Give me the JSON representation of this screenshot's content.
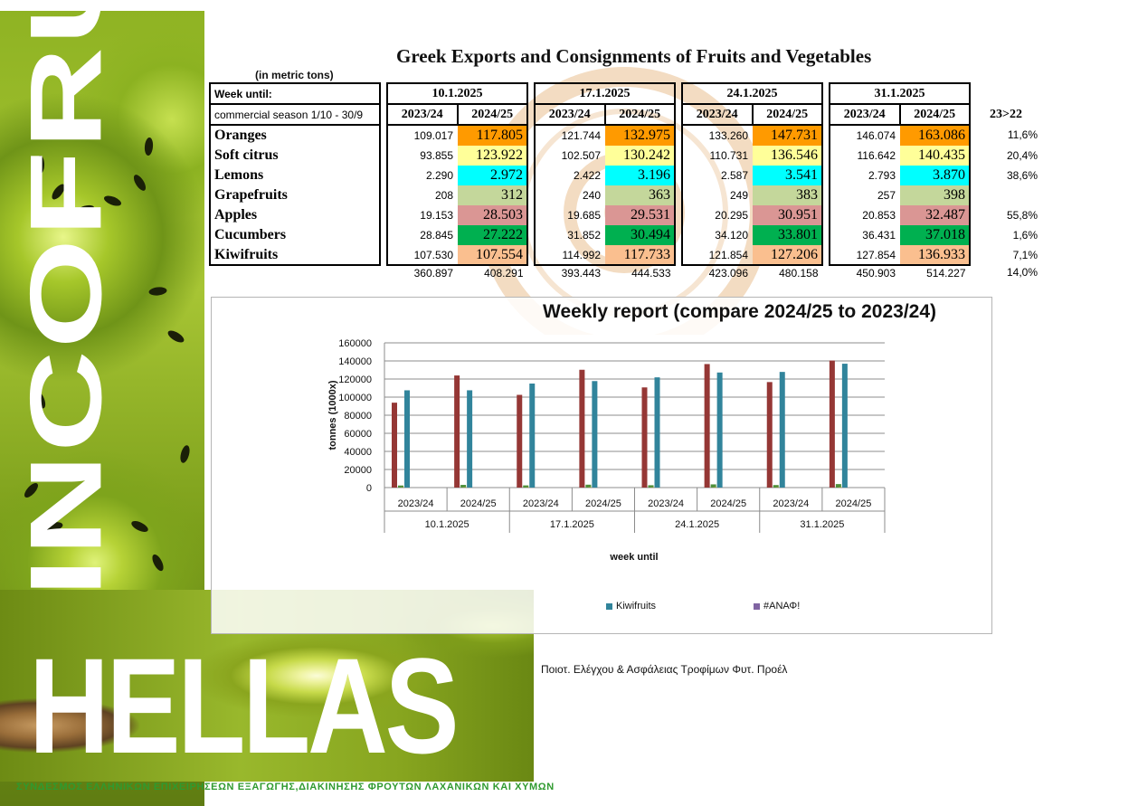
{
  "branding": {
    "vertical_text": "INCOFRUIT",
    "horizontal_text": "HELLAS",
    "association": "ΣΥΝΔΕΣΜΟΣ ΕΛΛΗΝΙΚΩΝ ΕΠΙΧΕΙΡΗΣΕΩΝ ΕΞΑΓΩΓΗΣ,ΔΙΑΚΙΝΗΣΗΣ ΦΡΟΥΤΩΝ ΛΑΧΑΝΙΚΩΝ ΚΑΙ ΧΥΜΩΝ"
  },
  "report": {
    "title": "Greek Exports and Consignments of Fruits and Vegetables",
    "units": "(in metric tons)",
    "week_label": "Week until:",
    "season_label": "commercial season 1/10 - 30/9",
    "change_header": "23>22",
    "weeks": [
      "10.1.2025",
      "17.1.2025",
      "24.1.2025",
      "31.1.2025"
    ],
    "seasons": [
      "2023/24",
      "2024/25"
    ],
    "products": [
      {
        "name": "Oranges",
        "color": "#ff9a00",
        "values": [
          "109.017",
          "117.805",
          "121.744",
          "132.975",
          "133.260",
          "147.731",
          "146.074",
          "163.086"
        ],
        "change": "11,6%"
      },
      {
        "name": "Soft citrus",
        "color": "#ffff99",
        "values": [
          "93.855",
          "123.922",
          "102.507",
          "130.242",
          "110.731",
          "136.546",
          "116.642",
          "140.435"
        ],
        "change": "20,4%"
      },
      {
        "name": "Lemons",
        "color": "#00ffff",
        "values": [
          "2.290",
          "2.972",
          "2.422",
          "3.196",
          "2.587",
          "3.541",
          "2.793",
          "3.870"
        ],
        "change": "38,6%"
      },
      {
        "name": "Grapefruits",
        "color": "#c4d79b",
        "values": [
          "208",
          "312",
          "240",
          "363",
          "249",
          "383",
          "257",
          "398"
        ],
        "change": ""
      },
      {
        "name": "Apples",
        "color": "#da9694",
        "values": [
          "19.153",
          "28.503",
          "19.685",
          "29.531",
          "20.295",
          "30.951",
          "20.853",
          "32.487"
        ],
        "change": "55,8%"
      },
      {
        "name": "Cucumbers",
        "color": "#00b050",
        "values": [
          "28.845",
          "27.222",
          "31.852",
          "30.494",
          "34.120",
          "33.801",
          "36.431",
          "37.018"
        ],
        "change": "1,6%"
      },
      {
        "name": "Kiwifruits",
        "color": "#fabf8f",
        "values": [
          "107.530",
          "107.554",
          "114.992",
          "117.733",
          "121.854",
          "127.206",
          "127.854",
          "136.933"
        ],
        "change": "7,1%"
      }
    ],
    "totals": [
      "360.897",
      "408.291",
      "393.443",
      "444.533",
      "423.096",
      "480.158",
      "450.903",
      "514.227"
    ],
    "totals_change": "14,0%"
  },
  "chart_data": {
    "type": "bar",
    "title": "Weekly report (compare 2024/25 to 2023/24)",
    "ylabel": "tonnes (1000x)",
    "xlabel": "week until",
    "ylim": [
      0,
      160000
    ],
    "yticks": [
      "0",
      "20000",
      "40000",
      "60000",
      "80000",
      "100000",
      "120000",
      "140000",
      "160000"
    ],
    "categories": [
      "2023/24",
      "2024/25",
      "2023/24",
      "2024/25",
      "2023/24",
      "2024/25",
      "2023/24",
      "2024/25"
    ],
    "groups": [
      "10.1.2025",
      "17.1.2025",
      "24.1.2025",
      "31.1.2025"
    ],
    "series": [
      {
        "name": "",
        "color": "#953735",
        "values": [
          93855,
          123922,
          102507,
          130242,
          110731,
          136546,
          116642,
          140435
        ]
      },
      {
        "name": "",
        "color": "#4f8f3a",
        "values": [
          2290,
          2972,
          2422,
          3196,
          2587,
          3541,
          2793,
          3870
        ]
      },
      {
        "name": "",
        "color": "#c0a030",
        "values": [
          208,
          312,
          240,
          363,
          249,
          383,
          257,
          398
        ]
      },
      {
        "name": "Kiwifruits",
        "color": "#31849b",
        "values": [
          107530,
          107554,
          114992,
          117733,
          121854,
          127206,
          127854,
          136933
        ]
      },
      {
        "name": "#ΑΝΑΦ!",
        "color": "#8064a2",
        "values": [
          0,
          0,
          0,
          0,
          0,
          0,
          0,
          0
        ]
      }
    ],
    "grid": true,
    "legend": "bottom"
  },
  "footer": {
    "note": "Ποιοτ. Ελέγχου & Ασφάλειας Τροφίμων Φυτ. Προέλ"
  }
}
